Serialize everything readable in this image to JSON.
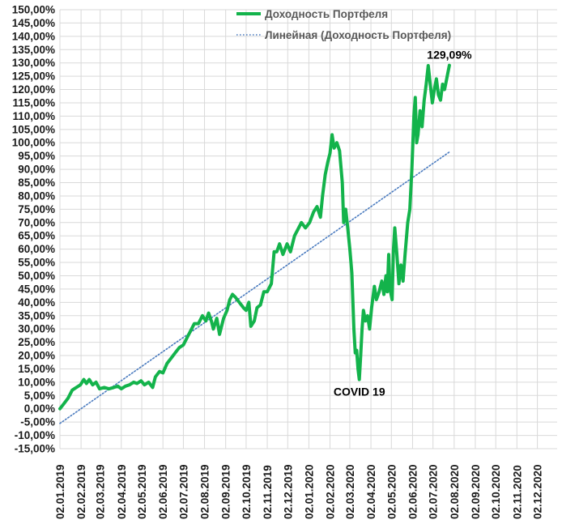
{
  "chart_data": {
    "type": "line",
    "title": "",
    "xlabel": "",
    "ylabel": "",
    "ylim": [
      -15,
      150
    ],
    "ytick_step": 5,
    "y_tick_labels": [
      "-15,00%",
      "-10,00%",
      "-5,00%",
      "0,00%",
      "5,00%",
      "10,00%",
      "15,00%",
      "20,00%",
      "25,00%",
      "30,00%",
      "35,00%",
      "40,00%",
      "45,00%",
      "50,00%",
      "55,00%",
      "60,00%",
      "65,00%",
      "70,00%",
      "75,00%",
      "80,00%",
      "85,00%",
      "90,00%",
      "95,00%",
      "100,00%",
      "105,00%",
      "110,00%",
      "115,00%",
      "120,00%",
      "125,00%",
      "130,00%",
      "135,00%",
      "140,00%",
      "145,00%",
      "150,00%"
    ],
    "x_tick_labels": [
      "02.01.2019",
      "02.02.2019",
      "02.03.2019",
      "02.04.2019",
      "02.05.2019",
      "02.06.2019",
      "02.07.2019",
      "02.08.2019",
      "02.09.2019",
      "02.10.2019",
      "02.11.2019",
      "02.12.2019",
      "02.01.2020",
      "02.02.2020",
      "02.03.2020",
      "02.04.2020",
      "02.05.2020",
      "02.06.2020",
      "02.07.2020",
      "02.08.2020",
      "02.09.2020",
      "02.10.2020",
      "02.11.2020",
      "02.12.2020"
    ],
    "xlim": [
      "2019-01-02",
      "2020-12-31"
    ],
    "grid": true,
    "legend_position": "top-center",
    "series": [
      {
        "name": "Доходность Портфеля",
        "color": "#13b34b",
        "style": "solid",
        "points": [
          [
            "2019-01-02",
            0
          ],
          [
            "2019-01-08",
            2
          ],
          [
            "2019-01-14",
            4
          ],
          [
            "2019-01-20",
            7
          ],
          [
            "2019-01-26",
            8
          ],
          [
            "2019-02-01",
            9
          ],
          [
            "2019-02-06",
            11
          ],
          [
            "2019-02-10",
            9.5
          ],
          [
            "2019-02-14",
            11
          ],
          [
            "2019-02-19",
            9
          ],
          [
            "2019-02-24",
            10
          ],
          [
            "2019-03-01",
            7.5
          ],
          [
            "2019-03-08",
            8
          ],
          [
            "2019-03-15",
            7.5
          ],
          [
            "2019-03-22",
            8
          ],
          [
            "2019-03-28",
            8.5
          ],
          [
            "2019-04-02",
            7.5
          ],
          [
            "2019-04-08",
            8.5
          ],
          [
            "2019-04-14",
            9
          ],
          [
            "2019-04-20",
            10
          ],
          [
            "2019-04-25",
            9.5
          ],
          [
            "2019-05-01",
            10.5
          ],
          [
            "2019-05-06",
            9
          ],
          [
            "2019-05-12",
            10
          ],
          [
            "2019-05-18",
            8
          ],
          [
            "2019-05-22",
            12
          ],
          [
            "2019-05-28",
            14
          ],
          [
            "2019-06-02",
            13.5
          ],
          [
            "2019-06-08",
            17
          ],
          [
            "2019-06-14",
            19
          ],
          [
            "2019-06-20",
            21
          ],
          [
            "2019-06-26",
            23
          ],
          [
            "2019-07-02",
            24
          ],
          [
            "2019-07-08",
            27
          ],
          [
            "2019-07-14",
            30
          ],
          [
            "2019-07-18",
            32
          ],
          [
            "2019-07-24",
            32
          ],
          [
            "2019-07-30",
            35
          ],
          [
            "2019-08-04",
            33
          ],
          [
            "2019-08-08",
            36
          ],
          [
            "2019-08-12",
            33
          ],
          [
            "2019-08-15",
            30
          ],
          [
            "2019-08-20",
            34
          ],
          [
            "2019-08-24",
            28
          ],
          [
            "2019-08-30",
            34
          ],
          [
            "2019-09-04",
            37
          ],
          [
            "2019-09-08",
            41
          ],
          [
            "2019-09-12",
            43
          ],
          [
            "2019-09-16",
            42
          ],
          [
            "2019-09-22",
            40
          ],
          [
            "2019-09-28",
            38
          ],
          [
            "2019-10-02",
            37
          ],
          [
            "2019-10-06",
            40
          ],
          [
            "2019-10-09",
            31
          ],
          [
            "2019-10-14",
            33
          ],
          [
            "2019-10-18",
            38
          ],
          [
            "2019-10-23",
            39
          ],
          [
            "2019-10-28",
            44
          ],
          [
            "2019-11-02",
            44
          ],
          [
            "2019-11-08",
            47
          ],
          [
            "2019-11-12",
            59
          ],
          [
            "2019-11-16",
            59
          ],
          [
            "2019-11-20",
            62
          ],
          [
            "2019-11-25",
            58
          ],
          [
            "2019-12-01",
            62
          ],
          [
            "2019-12-06",
            59
          ],
          [
            "2019-12-12",
            65
          ],
          [
            "2019-12-18",
            68
          ],
          [
            "2019-12-22",
            70
          ],
          [
            "2019-12-28",
            68
          ],
          [
            "2020-01-03",
            70
          ],
          [
            "2020-01-09",
            74
          ],
          [
            "2020-01-14",
            76
          ],
          [
            "2020-01-19",
            72
          ],
          [
            "2020-01-22",
            80
          ],
          [
            "2020-01-26",
            88
          ],
          [
            "2020-01-30",
            93
          ],
          [
            "2020-02-02",
            96
          ],
          [
            "2020-02-05",
            103
          ],
          [
            "2020-02-08",
            98
          ],
          [
            "2020-02-12",
            100
          ],
          [
            "2020-02-16",
            97
          ],
          [
            "2020-02-20",
            85
          ],
          [
            "2020-02-22",
            70
          ],
          [
            "2020-02-25",
            75
          ],
          [
            "2020-02-28",
            68
          ],
          [
            "2020-03-02",
            60
          ],
          [
            "2020-03-05",
            51
          ],
          [
            "2020-03-08",
            30
          ],
          [
            "2020-03-10",
            21
          ],
          [
            "2020-03-12",
            22
          ],
          [
            "2020-03-14",
            15
          ],
          [
            "2020-03-16",
            11
          ],
          [
            "2020-03-18",
            20
          ],
          [
            "2020-03-20",
            30
          ],
          [
            "2020-03-22",
            37
          ],
          [
            "2020-03-25",
            33
          ],
          [
            "2020-03-28",
            35
          ],
          [
            "2020-03-31",
            30
          ],
          [
            "2020-04-03",
            38
          ],
          [
            "2020-04-07",
            46
          ],
          [
            "2020-04-10",
            41
          ],
          [
            "2020-04-14",
            44
          ],
          [
            "2020-04-18",
            48
          ],
          [
            "2020-04-21",
            43
          ],
          [
            "2020-04-24",
            50
          ],
          [
            "2020-04-26",
            44
          ],
          [
            "2020-04-28",
            58
          ],
          [
            "2020-04-30",
            45
          ],
          [
            "2020-05-03",
            41
          ],
          [
            "2020-05-05",
            60
          ],
          [
            "2020-05-07",
            68
          ],
          [
            "2020-05-10",
            58
          ],
          [
            "2020-05-13",
            47
          ],
          [
            "2020-05-16",
            54
          ],
          [
            "2020-05-19",
            48
          ],
          [
            "2020-05-22",
            58
          ],
          [
            "2020-05-26",
            70
          ],
          [
            "2020-05-29",
            75
          ],
          [
            "2020-06-01",
            90
          ],
          [
            "2020-06-04",
            110
          ],
          [
            "2020-06-06",
            117
          ],
          [
            "2020-06-08",
            100
          ],
          [
            "2020-06-10",
            103
          ],
          [
            "2020-06-13",
            112
          ],
          [
            "2020-06-16",
            106
          ],
          [
            "2020-06-19",
            116
          ],
          [
            "2020-06-22",
            122
          ],
          [
            "2020-06-25",
            129
          ],
          [
            "2020-06-28",
            122
          ],
          [
            "2020-07-01",
            115
          ],
          [
            "2020-07-04",
            120
          ],
          [
            "2020-07-07",
            124
          ],
          [
            "2020-07-10",
            118
          ],
          [
            "2020-07-13",
            116
          ],
          [
            "2020-07-16",
            122
          ],
          [
            "2020-07-19",
            120
          ],
          [
            "2020-07-22",
            124
          ],
          [
            "2020-07-26",
            129.09
          ]
        ]
      },
      {
        "name": "Линейная (Доходность Портфеля)",
        "color": "#4a7bbf",
        "style": "dotted",
        "trendline": "linear",
        "points": [
          [
            "2019-01-02",
            -5.5
          ],
          [
            "2020-07-26",
            96.5
          ]
        ]
      }
    ],
    "annotations": [
      {
        "text": "129,09%",
        "date": "2020-07-26",
        "value": 129.09,
        "placement": "above"
      },
      {
        "text": "COVID 19",
        "date": "2020-03-16",
        "value": 11,
        "placement": "below"
      }
    ]
  }
}
